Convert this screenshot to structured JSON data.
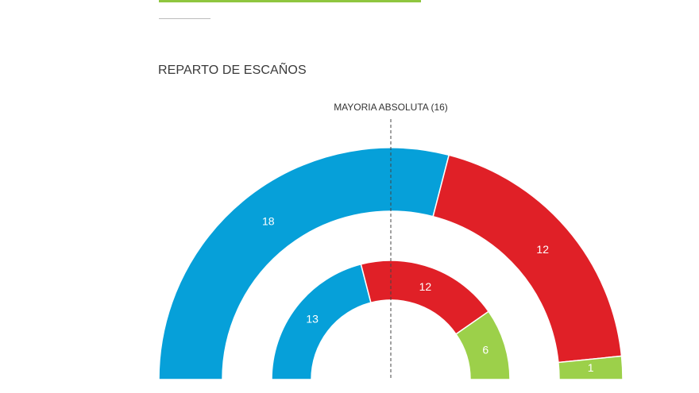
{
  "header": {
    "title": "REPARTO DE ESCAÑOS"
  },
  "chart_data": {
    "type": "semicircle-parliament",
    "title": "REPARTO DE ESCAÑOS",
    "majority_label": "MAYORIA ABSOLUTA (16)",
    "majority": 16,
    "rings": [
      {
        "ring": "outer",
        "total": 31,
        "segments": [
          {
            "value": 18,
            "label": "18",
            "color": "#06a0d9"
          },
          {
            "value": 12,
            "label": "12",
            "color": "#e02027"
          },
          {
            "value": 1,
            "label": "1",
            "color": "#9cd04a"
          }
        ]
      },
      {
        "ring": "inner",
        "total": 31,
        "segments": [
          {
            "value": 13,
            "label": "13",
            "color": "#06a0d9"
          },
          {
            "value": 12,
            "label": "12",
            "color": "#e02027"
          },
          {
            "value": 6,
            "label": "6",
            "color": "#9cd04a"
          }
        ]
      }
    ]
  }
}
